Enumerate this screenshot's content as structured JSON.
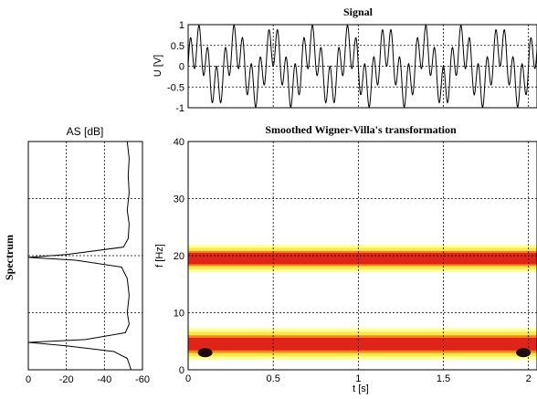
{
  "chart_data": [
    {
      "type": "line",
      "title": "Signal",
      "xlabel": "",
      "ylabel": "U [V]",
      "ylim": [
        -1,
        1
      ],
      "xlim": [
        0,
        2.05
      ],
      "yticks": [
        "1",
        "0.5",
        "0",
        "-0.5",
        "-1"
      ],
      "grid": true,
      "series": [
        {
          "components": [
            {
              "amplitude": 0.5,
              "frequency_hz": 19.5
            },
            {
              "amplitude": 0.5,
              "frequency_hz": 4.5
            }
          ]
        }
      ]
    },
    {
      "type": "line",
      "title": "AS [dB]",
      "label": "Spectrum",
      "xlabel": "",
      "ylabel": "",
      "xlim": [
        0,
        -60
      ],
      "ylim": [
        0,
        40
      ],
      "xticks": [
        "0",
        "-20",
        "-40",
        "-60"
      ],
      "grid": true,
      "series": [
        {
          "points": [
            [
              -52,
              40
            ],
            [
              -53,
              37
            ],
            [
              -52.5,
              34
            ],
            [
              -53,
              31
            ],
            [
              -52,
              28
            ],
            [
              -53,
              25.5
            ],
            [
              -52.5,
              23
            ],
            [
              -50,
              21.5
            ],
            [
              -20,
              20.2
            ],
            [
              0,
              19.7
            ],
            [
              -25,
              19.2
            ],
            [
              -49,
              18
            ],
            [
              -52,
              16
            ],
            [
              -53,
              13
            ],
            [
              -52,
              10
            ],
            [
              -53,
              8
            ],
            [
              -51,
              6.5
            ],
            [
              -30,
              5.3
            ],
            [
              0,
              4.8
            ],
            [
              -20,
              4.2
            ],
            [
              -45,
              3.2
            ],
            [
              -52,
              2
            ],
            [
              -53,
              1
            ],
            [
              -54,
              0
            ]
          ]
        }
      ]
    },
    {
      "type": "heatmap",
      "title": "Smoothed Wigner-Villa's transformation",
      "xlabel": "t [s]",
      "ylabel": "f [Hz]",
      "xlim": [
        0,
        2.05
      ],
      "ylim": [
        0,
        40
      ],
      "xticks": [
        "0",
        "0.5",
        "1",
        "1.5",
        "2"
      ],
      "yticks": [
        "40",
        "30",
        "20",
        "10",
        "0"
      ],
      "grid": true,
      "bands": [
        {
          "f_center": 19.5,
          "t_start": 0,
          "t_end": 2.05,
          "outer_width": 4.8,
          "core_width": 2.0
        },
        {
          "f_center": 4.5,
          "t_start": 0,
          "t_end": 2.05,
          "outer_width": 5.6,
          "core_width": 2.2
        }
      ],
      "colors": {
        "pale": "#ffff9e",
        "yellow": "#ffe84a",
        "orange": "#f5841c",
        "red": "#e0241a",
        "dark": "#1e0a06"
      }
    }
  ]
}
